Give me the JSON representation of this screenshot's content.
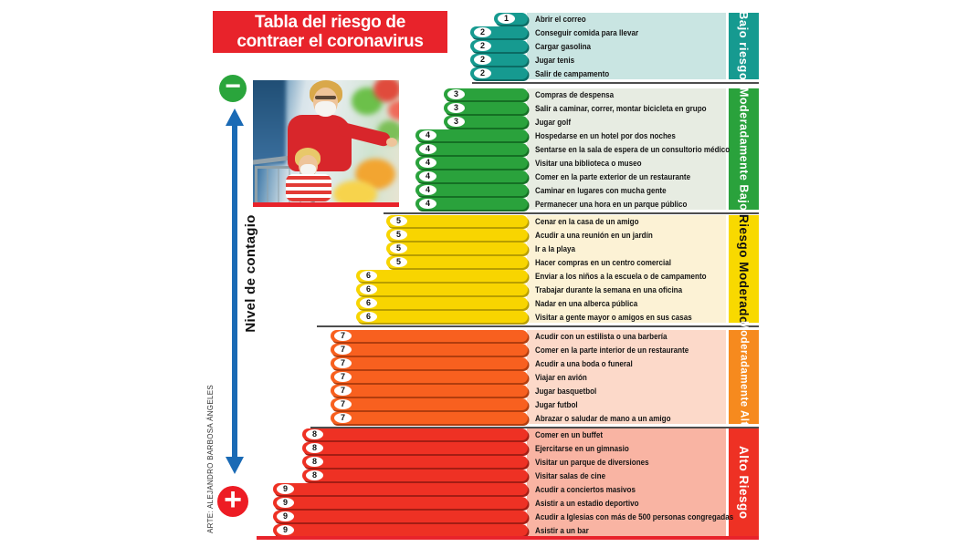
{
  "title": {
    "line1": "Tabla del riesgo de",
    "line2": "contraer el coronavirus"
  },
  "axis": {
    "label": "Nivel  de contagio",
    "low_symbol": "−",
    "high_symbol": "+"
  },
  "credit": "ARTE: ALEJANDRO BARBOSA ÁNGELES",
  "colors": {
    "title_bg": "#e8232b",
    "arrow": "#1a6ab5",
    "minus_bg": "#2aa53c",
    "plus_bg": "#ed1c24",
    "bottom_line": "#e8232b"
  },
  "chart_data": {
    "type": "bar",
    "orientation": "horizontal",
    "title": "Tabla del riesgo de contraer el coronavirus",
    "value_axis_label": "Nivel de contagio",
    "value_range": [
      1,
      9
    ],
    "legend_position": "right-vertical-strips",
    "sections": [
      {
        "label": "Bajo riesgo",
        "bar_color": "#169a90",
        "bar_shadow": "#0b6b64",
        "panel_color": "#c9e5e2",
        "label_bg": "#169a90",
        "label_color": "#ffffff",
        "items": [
          {
            "value": 1,
            "activity": "Abrir el correo"
          },
          {
            "value": 2,
            "activity": "Conseguir comida para llevar"
          },
          {
            "value": 2,
            "activity": "Cargar gasolina"
          },
          {
            "value": 2,
            "activity": "Jugar tenis"
          },
          {
            "value": 2,
            "activity": "Salir de campamento"
          }
        ]
      },
      {
        "label": "Moderadamente Bajo",
        "bar_color": "#2aa23c",
        "bar_shadow": "#156f24",
        "panel_color": "#e7ece2",
        "label_bg": "#2aa23c",
        "label_color": "#ffffff",
        "items": [
          {
            "value": 3,
            "activity": "Compras de despensa"
          },
          {
            "value": 3,
            "activity": "Salir a caminar, correr, montar bicicleta en grupo"
          },
          {
            "value": 3,
            "activity": "Jugar golf"
          },
          {
            "value": 4,
            "activity": "Hospedarse en un hotel por dos noches"
          },
          {
            "value": 4,
            "activity": "Sentarse en la sala de espera de un consultorio médico"
          },
          {
            "value": 4,
            "activity": "Visitar una biblioteca o museo"
          },
          {
            "value": 4,
            "activity": "Comer en la parte exterior de un restaurante"
          },
          {
            "value": 4,
            "activity": "Caminar en lugares con mucha gente"
          },
          {
            "value": 4,
            "activity": "Permanecer una hora en un parque público"
          }
        ]
      },
      {
        "label": "Riesgo Moderado",
        "bar_color": "#f8d500",
        "bar_shadow": "#b89e00",
        "panel_color": "#fcf2d5",
        "label_bg": "#f8d900",
        "label_color": "#111111",
        "items": [
          {
            "value": 5,
            "activity": "Cenar en la casa de un amigo"
          },
          {
            "value": 5,
            "activity": "Acudir a una reunión en un jardín"
          },
          {
            "value": 5,
            "activity": "Ir a la playa"
          },
          {
            "value": 5,
            "activity": "Hacer compras en un centro comercial"
          },
          {
            "value": 6,
            "activity": "Enviar a los niños a la escuela o de campamento"
          },
          {
            "value": 6,
            "activity": "Trabajar durante la semana en una oficina"
          },
          {
            "value": 6,
            "activity": "Nadar en una alberca pública"
          },
          {
            "value": 6,
            "activity": "Visitar a gente mayor o amigos en sus casas"
          }
        ]
      },
      {
        "label": "Moderadamente Alto",
        "bar_color": "#f8601f",
        "bar_shadow": "#b13d0e",
        "panel_color": "#fcd9c9",
        "label_bg": "#f68a1e",
        "label_color": "#ffffff",
        "items": [
          {
            "value": 7,
            "activity": "Acudir con un estilista o una barbería"
          },
          {
            "value": 7,
            "activity": "Comer en la parte interior de un restaurante"
          },
          {
            "value": 7,
            "activity": "Acudir a una boda o funeral"
          },
          {
            "value": 7,
            "activity": "Viajar en avión"
          },
          {
            "value": 7,
            "activity": "Jugar basquetbol"
          },
          {
            "value": 7,
            "activity": "Jugar futbol"
          },
          {
            "value": 7,
            "activity": "Abrazar o saludar de mano a un amigo"
          }
        ]
      },
      {
        "label": "Alto Riesgo",
        "bar_color": "#ee3124",
        "bar_shadow": "#a31d14",
        "panel_color": "#f9b4a3",
        "label_bg": "#ee3124",
        "label_color": "#ffffff",
        "items": [
          {
            "value": 8,
            "activity": "Comer en un buffet"
          },
          {
            "value": 8,
            "activity": "Ejercitarse en un gimnasio"
          },
          {
            "value": 8,
            "activity": "Visitar un parque de diversiones"
          },
          {
            "value": 8,
            "activity": "Visitar salas de cine"
          },
          {
            "value": 9,
            "activity": "Acudir a conciertos masivos"
          },
          {
            "value": 9,
            "activity": "Asistir a un estadio deportivo"
          },
          {
            "value": 9,
            "activity": "Acudir a Iglesias con más de 500 personas congregadas"
          },
          {
            "value": 9,
            "activity": "Asistir a un bar"
          }
        ]
      }
    ]
  }
}
